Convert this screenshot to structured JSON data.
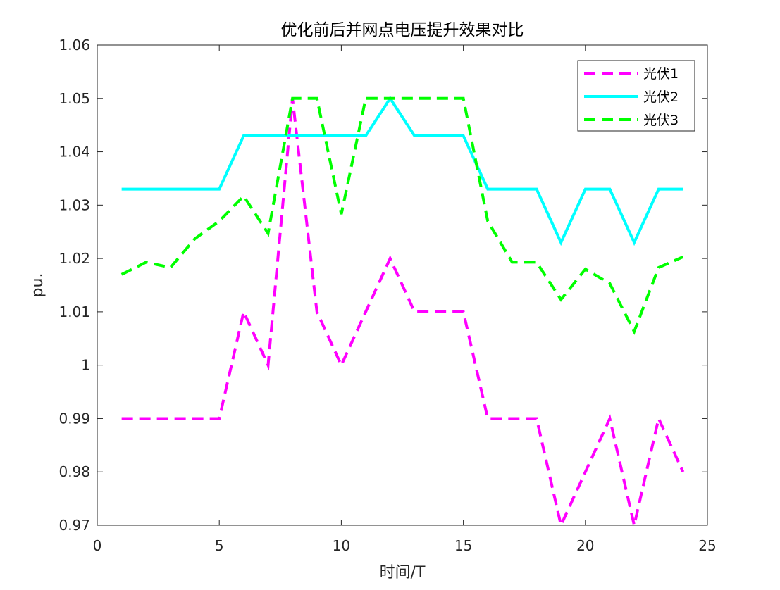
{
  "chart_data": {
    "type": "line",
    "title": "优化前后并网点电压提升效果对比",
    "xlabel": "时间/T",
    "ylabel": "pu.",
    "xlim": [
      0,
      25
    ],
    "ylim": [
      0.97,
      1.06
    ],
    "xticks": [
      0,
      5,
      10,
      15,
      20,
      25
    ],
    "xtick_labels": [
      "0",
      "5",
      "10",
      "15",
      "20",
      "25"
    ],
    "yticks": [
      0.97,
      0.98,
      0.99,
      1.0,
      1.01,
      1.02,
      1.03,
      1.04,
      1.05,
      1.06
    ],
    "ytick_labels": [
      "0.97",
      "0.98",
      "0.99",
      "1",
      "1.01",
      "1.02",
      "1.03",
      "1.04",
      "1.05",
      "1.06"
    ],
    "grid": false,
    "legend_position": "top-right",
    "x": [
      1,
      2,
      3,
      4,
      5,
      6,
      7,
      8,
      9,
      10,
      11,
      12,
      13,
      14,
      15,
      16,
      17,
      18,
      19,
      20,
      21,
      22,
      23,
      24
    ],
    "series": [
      {
        "name": "光伏1",
        "color": "#ff00ff",
        "style": "dashed",
        "values": [
          0.99,
          0.99,
          0.99,
          0.99,
          0.99,
          1.01,
          1.0,
          1.05,
          1.01,
          1.0,
          1.01,
          1.02,
          1.01,
          1.01,
          1.01,
          0.99,
          0.99,
          0.99,
          0.97,
          0.98,
          0.99,
          0.97,
          0.99,
          0.98
        ]
      },
      {
        "name": "光伏2",
        "color": "#00ffff",
        "style": "solid",
        "values": [
          1.033,
          1.033,
          1.033,
          1.033,
          1.033,
          1.043,
          1.043,
          1.043,
          1.043,
          1.043,
          1.043,
          1.05,
          1.043,
          1.043,
          1.043,
          1.033,
          1.033,
          1.033,
          1.023,
          1.033,
          1.033,
          1.023,
          1.033,
          1.033
        ]
      },
      {
        "name": "光伏3",
        "color": "#00ff00",
        "style": "dashed",
        "values": [
          1.017,
          1.0193,
          1.0183,
          1.0237,
          1.027,
          1.0317,
          1.0247,
          1.05,
          1.05,
          1.0283,
          1.05,
          1.05,
          1.05,
          1.05,
          1.05,
          1.027,
          1.0193,
          1.0193,
          1.0123,
          1.018,
          1.0153,
          1.0063,
          1.0183,
          1.0203
        ]
      }
    ]
  }
}
